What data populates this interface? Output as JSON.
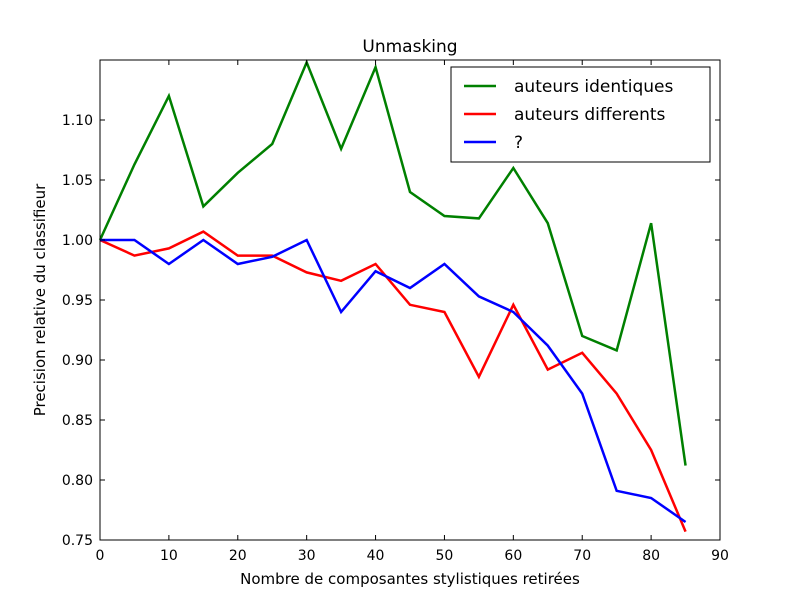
{
  "chart_data": {
    "type": "line",
    "title": "Unmasking",
    "xlabel": "Nombre de composantes stylistiques retirées",
    "ylabel": "Precision relative du classifieur",
    "xlim": [
      0,
      90
    ],
    "ylim": [
      0.75,
      1.15
    ],
    "xticks": [
      0,
      10,
      20,
      30,
      40,
      50,
      60,
      70,
      80,
      90
    ],
    "yticks": [
      0.75,
      0.8,
      0.85,
      0.9,
      0.95,
      1.0,
      1.05,
      1.1
    ],
    "xtick_labels": [
      "0",
      "10",
      "20",
      "30",
      "40",
      "50",
      "60",
      "70",
      "80",
      "90"
    ],
    "ytick_labels": [
      "0.75",
      "0.80",
      "0.85",
      "0.90",
      "0.95",
      "1.00",
      "1.05",
      "1.10"
    ],
    "grid": false,
    "legend_position": "top-right",
    "x": [
      0,
      5,
      10,
      15,
      20,
      25,
      30,
      35,
      40,
      45,
      50,
      55,
      60,
      65,
      70,
      75,
      80,
      85
    ],
    "series": [
      {
        "name": "auteurs identiques",
        "color": "#008000",
        "values": [
          1.0,
          1.063,
          1.12,
          1.028,
          1.056,
          1.08,
          1.148,
          1.076,
          1.144,
          1.04,
          1.02,
          1.018,
          1.06,
          1.014,
          0.92,
          0.908,
          1.014,
          0.812
        ]
      },
      {
        "name": "auteurs differents",
        "color": "#ff0000",
        "values": [
          1.0,
          0.987,
          0.993,
          1.007,
          0.987,
          0.987,
          0.973,
          0.966,
          0.98,
          0.946,
          0.94,
          0.886,
          0.946,
          0.892,
          0.906,
          0.872,
          0.825,
          0.757
        ]
      },
      {
        "name": "?",
        "color": "#0000ff",
        "values": [
          1.0,
          1.0,
          0.98,
          1.0,
          0.98,
          0.986,
          1.0,
          0.94,
          0.974,
          0.96,
          0.98,
          0.953,
          0.94,
          0.912,
          0.872,
          0.791,
          0.785,
          0.765
        ]
      }
    ]
  }
}
